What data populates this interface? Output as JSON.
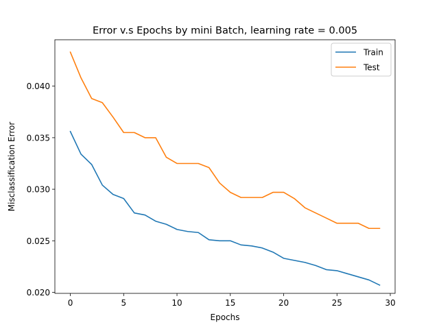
{
  "chart_data": {
    "type": "line",
    "title": "Error v.s Epochs by mini Batch, learning rate = 0.005",
    "xlabel": "Epochs",
    "ylabel": "Misclassification Error",
    "xlim": [
      -1.45,
      30.45
    ],
    "ylim": [
      0.0199,
      0.0445
    ],
    "xticks": [
      0,
      5,
      10,
      15,
      20,
      25,
      30
    ],
    "xtick_labels": [
      "0",
      "5",
      "10",
      "15",
      "20",
      "25",
      "30"
    ],
    "yticks": [
      0.02,
      0.025,
      0.03,
      0.035,
      0.04
    ],
    "ytick_labels": [
      "0.020",
      "0.025",
      "0.030",
      "0.035",
      "0.040"
    ],
    "grid": false,
    "legend_position": "upper-right",
    "x": [
      0,
      1,
      2,
      3,
      4,
      5,
      6,
      7,
      8,
      9,
      10,
      11,
      12,
      13,
      14,
      15,
      16,
      17,
      18,
      19,
      20,
      21,
      22,
      23,
      24,
      25,
      26,
      27,
      28,
      29
    ],
    "series": [
      {
        "name": "Train",
        "color": "#1f77b4",
        "values": [
          0.0356,
          0.0334,
          0.0324,
          0.0304,
          0.0295,
          0.0291,
          0.0277,
          0.0275,
          0.0269,
          0.0266,
          0.0261,
          0.0259,
          0.0258,
          0.0251,
          0.025,
          0.025,
          0.0246,
          0.0245,
          0.0243,
          0.0239,
          0.0233,
          0.0231,
          0.0229,
          0.0226,
          0.0222,
          0.0221,
          0.0218,
          0.0215,
          0.0212,
          0.0207
        ]
      },
      {
        "name": "Test",
        "color": "#ff7f0e",
        "values": [
          0.0433,
          0.0408,
          0.0388,
          0.0384,
          0.037,
          0.0355,
          0.0355,
          0.035,
          0.035,
          0.0331,
          0.0325,
          0.0325,
          0.0325,
          0.0321,
          0.0306,
          0.0297,
          0.0292,
          0.0292,
          0.0292,
          0.0297,
          0.0297,
          0.0291,
          0.0282,
          0.0277,
          0.0272,
          0.0267,
          0.0267,
          0.0267,
          0.0262,
          0.0262
        ]
      }
    ]
  }
}
